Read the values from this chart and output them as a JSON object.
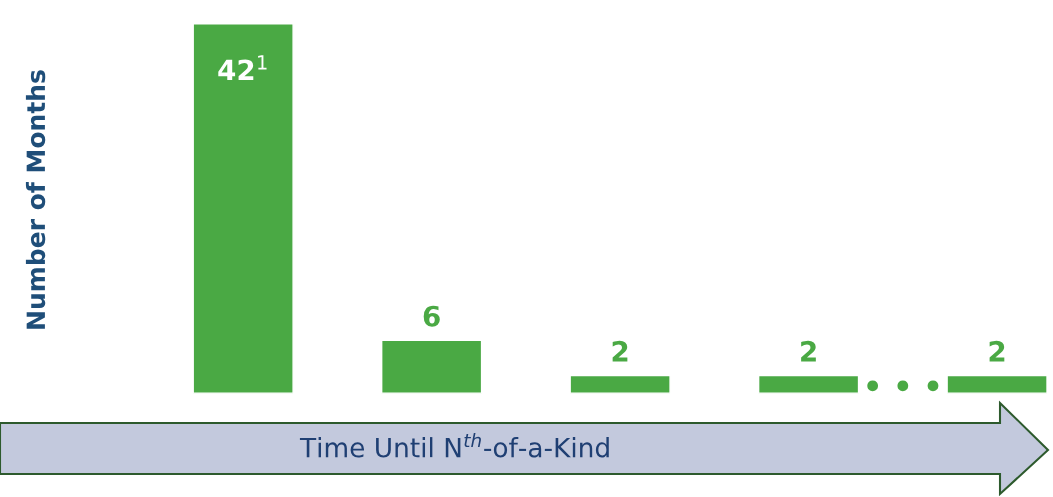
{
  "chart_data": {
    "type": "bar",
    "categories": [
      null,
      null,
      null,
      null,
      null
    ],
    "values": [
      42,
      6,
      2,
      2,
      2
    ],
    "value_labels": [
      "42$^{1}$",
      "6",
      "2",
      "2",
      "2"
    ],
    "color": "#4aa944",
    "ylabel": "Number of Months",
    "xlabel": "Time Until N$^{th}$-of-a-Kind",
    "annotations": [
      "• • •"
    ],
    "grid": false,
    "legend": false
  }
}
